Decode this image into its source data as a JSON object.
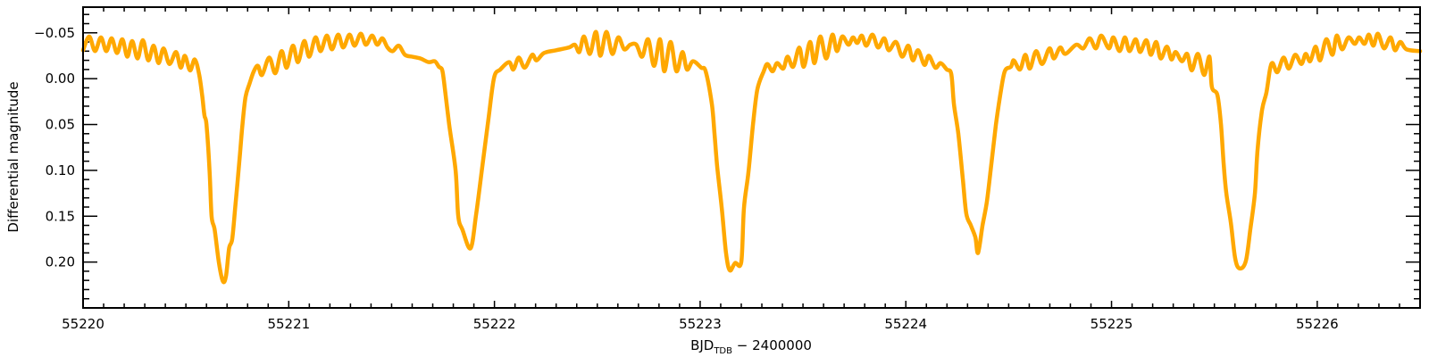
{
  "chart_data": {
    "type": "line",
    "title": "",
    "xlabel": "BJD",
    "xlabel_subscript": "TDB",
    "xlabel_suffix": " − 2400000",
    "ylabel": "Differential magnitude",
    "xlim": [
      55220.0,
      55226.5
    ],
    "ylim": [
      -0.078,
      0.25
    ],
    "y_inverted": true,
    "grid": false,
    "legend": "none",
    "x_ticks": [
      55220,
      55221,
      55222,
      55223,
      55224,
      55225,
      55226
    ],
    "x_tick_labels": [
      "55220",
      "55221",
      "55222",
      "55223",
      "55224",
      "55225",
      "55226"
    ],
    "x_minor_step": 0.1,
    "y_ticks": [
      -0.05,
      0.0,
      0.05,
      0.1,
      0.15,
      0.2
    ],
    "y_tick_labels": [
      "−0.05",
      "0.00",
      "0.05",
      "0.10",
      "0.15",
      "0.20"
    ],
    "y_minor_step": 0.01,
    "series": [
      {
        "color": "#FFA800",
        "points": [
          [
            55220.0,
            -0.031
          ],
          [
            55220.03,
            -0.046
          ],
          [
            55220.058,
            -0.03
          ],
          [
            55220.087,
            -0.045
          ],
          [
            55220.113,
            -0.03
          ],
          [
            55220.139,
            -0.044
          ],
          [
            55220.165,
            -0.028
          ],
          [
            55220.191,
            -0.043
          ],
          [
            55220.215,
            -0.024
          ],
          [
            55220.239,
            -0.041
          ],
          [
            55220.265,
            -0.022
          ],
          [
            55220.291,
            -0.042
          ],
          [
            55220.317,
            -0.02
          ],
          [
            55220.343,
            -0.036
          ],
          [
            55220.367,
            -0.017
          ],
          [
            55220.391,
            -0.033
          ],
          [
            55220.42,
            -0.016
          ],
          [
            55220.452,
            -0.029
          ],
          [
            55220.475,
            -0.012
          ],
          [
            55220.495,
            -0.025
          ],
          [
            55220.52,
            -0.009
          ],
          [
            55220.543,
            -0.021
          ],
          [
            55220.565,
            -0.004
          ],
          [
            55220.58,
            0.02
          ],
          [
            55220.59,
            0.04
          ],
          [
            55220.6,
            0.05
          ],
          [
            55220.615,
            0.1
          ],
          [
            55220.625,
            0.15
          ],
          [
            55220.64,
            0.165
          ],
          [
            55220.66,
            0.2
          ],
          [
            55220.68,
            0.221
          ],
          [
            55220.695,
            0.215
          ],
          [
            55220.71,
            0.185
          ],
          [
            55220.725,
            0.175
          ],
          [
            55220.74,
            0.14
          ],
          [
            55220.76,
            0.09
          ],
          [
            55220.775,
            0.05
          ],
          [
            55220.79,
            0.02
          ],
          [
            55220.81,
            0.005
          ],
          [
            55220.83,
            -0.008
          ],
          [
            55220.85,
            -0.014
          ],
          [
            55220.87,
            -0.004
          ],
          [
            55220.905,
            -0.023
          ],
          [
            55220.935,
            -0.006
          ],
          [
            55220.965,
            -0.03
          ],
          [
            55220.99,
            -0.012
          ],
          [
            55221.02,
            -0.036
          ],
          [
            55221.045,
            -0.018
          ],
          [
            55221.075,
            -0.041
          ],
          [
            55221.1,
            -0.024
          ],
          [
            55221.13,
            -0.045
          ],
          [
            55221.155,
            -0.03
          ],
          [
            55221.185,
            -0.047
          ],
          [
            55221.21,
            -0.032
          ],
          [
            55221.24,
            -0.048
          ],
          [
            55221.265,
            -0.034
          ],
          [
            55221.295,
            -0.048
          ],
          [
            55221.32,
            -0.036
          ],
          [
            55221.35,
            -0.049
          ],
          [
            55221.375,
            -0.037
          ],
          [
            55221.405,
            -0.047
          ],
          [
            55221.43,
            -0.037
          ],
          [
            55221.455,
            -0.044
          ],
          [
            55221.48,
            -0.034
          ],
          [
            55221.505,
            -0.03
          ],
          [
            55221.535,
            -0.036
          ],
          [
            55221.565,
            -0.026
          ],
          [
            55221.6,
            -0.024
          ],
          [
            55221.64,
            -0.022
          ],
          [
            55221.68,
            -0.018
          ],
          [
            55221.71,
            -0.019
          ],
          [
            55221.73,
            -0.013
          ],
          [
            55221.745,
            -0.01
          ],
          [
            55221.754,
            0.002
          ],
          [
            55221.78,
            0.05
          ],
          [
            55221.811,
            0.1
          ],
          [
            55221.824,
            0.15
          ],
          [
            55221.845,
            0.165
          ],
          [
            55221.884,
            0.185
          ],
          [
            55221.911,
            0.148
          ],
          [
            55221.941,
            0.096
          ],
          [
            55221.971,
            0.044
          ],
          [
            55221.998,
            -0.001
          ],
          [
            55222.028,
            -0.01
          ],
          [
            55222.071,
            -0.018
          ],
          [
            55222.092,
            -0.01
          ],
          [
            55222.118,
            -0.023
          ],
          [
            55222.147,
            -0.012
          ],
          [
            55222.183,
            -0.026
          ],
          [
            55222.205,
            -0.02
          ],
          [
            55222.241,
            -0.028
          ],
          [
            55222.3,
            -0.031
          ],
          [
            55222.362,
            -0.034
          ],
          [
            55222.391,
            -0.037
          ],
          [
            55222.413,
            -0.029
          ],
          [
            55222.435,
            -0.046
          ],
          [
            55222.464,
            -0.027
          ],
          [
            55222.493,
            -0.051
          ],
          [
            55222.515,
            -0.025
          ],
          [
            55222.544,
            -0.051
          ],
          [
            55222.573,
            -0.027
          ],
          [
            55222.602,
            -0.045
          ],
          [
            55222.631,
            -0.032
          ],
          [
            55222.66,
            -0.037
          ],
          [
            55222.69,
            -0.037
          ],
          [
            55222.718,
            -0.024
          ],
          [
            55222.747,
            -0.043
          ],
          [
            55222.776,
            -0.014
          ],
          [
            55222.805,
            -0.043
          ],
          [
            55222.826,
            -0.008
          ],
          [
            55222.856,
            -0.04
          ],
          [
            55222.885,
            -0.008
          ],
          [
            55222.914,
            -0.029
          ],
          [
            55222.936,
            -0.01
          ],
          [
            55222.965,
            -0.019
          ],
          [
            55223.005,
            -0.012
          ],
          [
            55223.027,
            -0.008
          ],
          [
            55223.057,
            0.028
          ],
          [
            55223.07,
            0.06
          ],
          [
            55223.083,
            0.096
          ],
          [
            55223.105,
            0.141
          ],
          [
            55223.126,
            0.19
          ],
          [
            55223.144,
            0.209
          ],
          [
            55223.17,
            0.201
          ],
          [
            55223.2,
            0.2
          ],
          [
            55223.213,
            0.141
          ],
          [
            55223.235,
            0.102
          ],
          [
            55223.257,
            0.05
          ],
          [
            55223.278,
            0.012
          ],
          [
            55223.309,
            -0.008
          ],
          [
            55223.327,
            -0.016
          ],
          [
            55223.352,
            -0.008
          ],
          [
            55223.374,
            -0.017
          ],
          [
            55223.404,
            -0.011
          ],
          [
            55223.425,
            -0.024
          ],
          [
            55223.452,
            -0.013
          ],
          [
            55223.482,
            -0.034
          ],
          [
            55223.504,
            -0.013
          ],
          [
            55223.534,
            -0.04
          ],
          [
            55223.556,
            -0.017
          ],
          [
            55223.584,
            -0.046
          ],
          [
            55223.613,
            -0.022
          ],
          [
            55223.643,
            -0.048
          ],
          [
            55223.665,
            -0.03
          ],
          [
            55223.691,
            -0.046
          ],
          [
            55223.721,
            -0.037
          ],
          [
            55223.743,
            -0.045
          ],
          [
            55223.764,
            -0.039
          ],
          [
            55223.786,
            -0.047
          ],
          [
            55223.808,
            -0.036
          ],
          [
            55223.838,
            -0.048
          ],
          [
            55223.865,
            -0.034
          ],
          [
            55223.895,
            -0.044
          ],
          [
            55223.917,
            -0.031
          ],
          [
            55223.952,
            -0.04
          ],
          [
            55223.982,
            -0.024
          ],
          [
            55224.012,
            -0.036
          ],
          [
            55224.034,
            -0.02
          ],
          [
            55224.06,
            -0.031
          ],
          [
            55224.09,
            -0.015
          ],
          [
            55224.112,
            -0.025
          ],
          [
            55224.143,
            -0.012
          ],
          [
            55224.169,
            -0.017
          ],
          [
            55224.199,
            -0.01
          ],
          [
            55224.221,
            -0.005
          ],
          [
            55224.234,
            0.028
          ],
          [
            55224.255,
            0.06
          ],
          [
            55224.277,
            0.109
          ],
          [
            55224.294,
            0.147
          ],
          [
            55224.316,
            0.16
          ],
          [
            55224.338,
            0.173
          ],
          [
            55224.351,
            0.19
          ],
          [
            55224.373,
            0.16
          ],
          [
            55224.394,
            0.134
          ],
          [
            55224.416,
            0.093
          ],
          [
            55224.438,
            0.05
          ],
          [
            55224.459,
            0.018
          ],
          [
            55224.481,
            -0.008
          ],
          [
            55224.511,
            -0.013
          ],
          [
            55224.525,
            -0.02
          ],
          [
            55224.555,
            -0.01
          ],
          [
            55224.581,
            -0.026
          ],
          [
            55224.603,
            -0.011
          ],
          [
            55224.633,
            -0.03
          ],
          [
            55224.663,
            -0.016
          ],
          [
            55224.698,
            -0.033
          ],
          [
            55224.72,
            -0.022
          ],
          [
            55224.75,
            -0.034
          ],
          [
            55224.776,
            -0.027
          ],
          [
            55224.828,
            -0.037
          ],
          [
            55224.863,
            -0.033
          ],
          [
            55224.894,
            -0.044
          ],
          [
            55224.924,
            -0.033
          ],
          [
            55224.95,
            -0.047
          ],
          [
            55224.987,
            -0.033
          ],
          [
            55225.009,
            -0.045
          ],
          [
            55225.039,
            -0.03
          ],
          [
            55225.065,
            -0.045
          ],
          [
            55225.087,
            -0.03
          ],
          [
            55225.117,
            -0.043
          ],
          [
            55225.139,
            -0.029
          ],
          [
            55225.169,
            -0.042
          ],
          [
            55225.191,
            -0.026
          ],
          [
            55225.217,
            -0.04
          ],
          [
            55225.239,
            -0.022
          ],
          [
            55225.269,
            -0.035
          ],
          [
            55225.291,
            -0.021
          ],
          [
            55225.312,
            -0.029
          ],
          [
            55225.342,
            -0.019
          ],
          [
            55225.368,
            -0.027
          ],
          [
            55225.39,
            -0.009
          ],
          [
            55225.42,
            -0.027
          ],
          [
            55225.45,
            -0.004
          ],
          [
            55225.476,
            -0.024
          ],
          [
            55225.488,
            0.009
          ],
          [
            55225.515,
            0.018
          ],
          [
            55225.532,
            0.05
          ],
          [
            55225.545,
            0.093
          ],
          [
            55225.558,
            0.125
          ],
          [
            55225.58,
            0.157
          ],
          [
            55225.601,
            0.196
          ],
          [
            55225.623,
            0.207
          ],
          [
            55225.653,
            0.199
          ],
          [
            55225.675,
            0.164
          ],
          [
            55225.697,
            0.125
          ],
          [
            55225.71,
            0.077
          ],
          [
            55225.732,
            0.034
          ],
          [
            55225.753,
            0.015
          ],
          [
            55225.771,
            -0.011
          ],
          [
            55225.784,
            -0.017
          ],
          [
            55225.806,
            -0.007
          ],
          [
            55225.836,
            -0.023
          ],
          [
            55225.862,
            -0.011
          ],
          [
            55225.893,
            -0.026
          ],
          [
            55225.923,
            -0.016
          ],
          [
            55225.944,
            -0.027
          ],
          [
            55225.966,
            -0.019
          ],
          [
            55225.992,
            -0.035
          ],
          [
            55226.014,
            -0.02
          ],
          [
            55226.044,
            -0.043
          ],
          [
            55226.074,
            -0.026
          ],
          [
            55226.095,
            -0.047
          ],
          [
            55226.121,
            -0.032
          ],
          [
            55226.152,
            -0.045
          ],
          [
            55226.182,
            -0.038
          ],
          [
            55226.204,
            -0.045
          ],
          [
            55226.23,
            -0.038
          ],
          [
            55226.251,
            -0.048
          ],
          [
            55226.273,
            -0.036
          ],
          [
            55226.295,
            -0.049
          ],
          [
            55226.325,
            -0.033
          ],
          [
            55226.356,
            -0.045
          ],
          [
            55226.378,
            -0.031
          ],
          [
            55226.404,
            -0.04
          ],
          [
            55226.434,
            -0.032
          ],
          [
            55226.5,
            -0.03
          ]
        ]
      }
    ]
  }
}
